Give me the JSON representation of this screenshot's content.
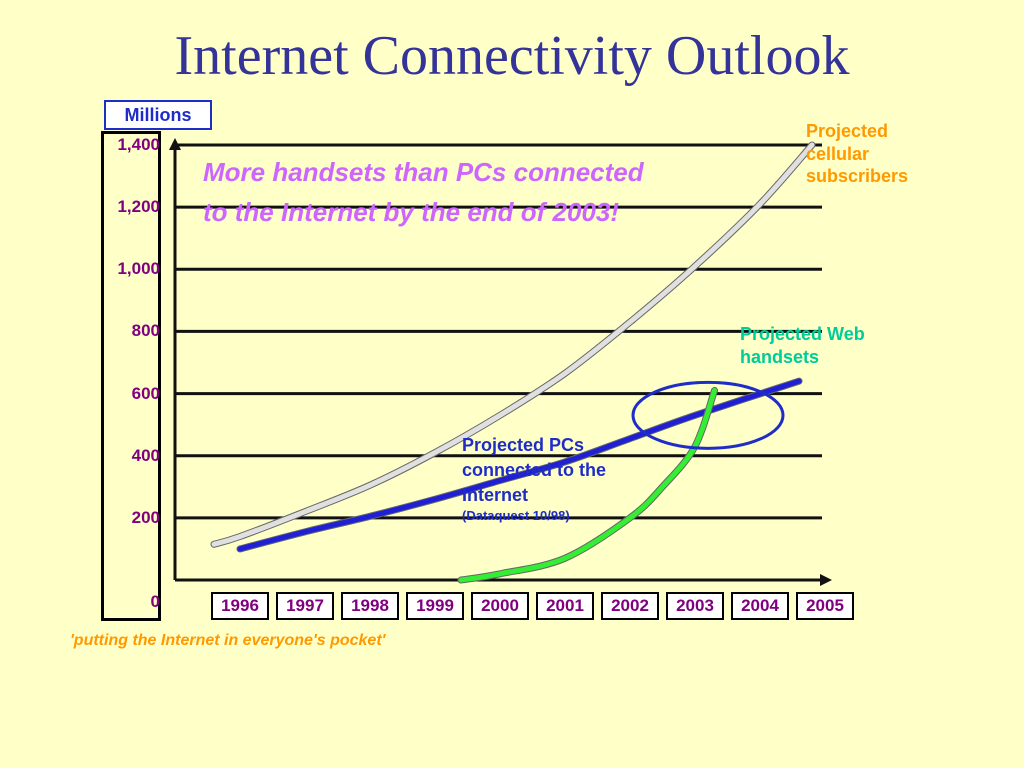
{
  "slide": {
    "title": "Internet Connectivity Outlook",
    "tagline": "'putting the Internet in everyone's pocket'"
  },
  "chart_data": {
    "type": "line",
    "ylabel": "Millions",
    "ylim": [
      0,
      1400
    ],
    "yticks": [
      "0",
      "200",
      "400",
      "600",
      "800",
      "1,000",
      "1,200",
      "1,400"
    ],
    "categories": [
      "1996",
      "1997",
      "1998",
      "1999",
      "2000",
      "2001",
      "2002",
      "2003",
      "2004",
      "2005"
    ],
    "grid": true,
    "callout": "More handsets than PCs connected to the Internet by the end of 2003!",
    "series": [
      {
        "name": "Projected cellular subscribers",
        "color": "#e0e0e0",
        "x": [
          1995.6,
          1996,
          1997,
          1998,
          1999,
          2000,
          2001,
          2002,
          2003,
          2004,
          2004.8
        ],
        "values": [
          115,
          140,
          220,
          305,
          410,
          530,
          665,
          830,
          1010,
          1210,
          1400
        ]
      },
      {
        "name": "Projected PCs connected to the Internet",
        "source": "(Dataquest 10/98)",
        "color": "#1f1fd6",
        "x": [
          1996,
          1997,
          1998,
          1999,
          2000,
          2001,
          2002,
          2003,
          2004.6
        ],
        "values": [
          100,
          155,
          205,
          260,
          320,
          380,
          455,
          530,
          640
        ]
      },
      {
        "name": "Projected Web handsets",
        "color": "#33ee33",
        "x": [
          1999.4,
          2000,
          2001,
          2002,
          2002.5,
          2003,
          2003.3
        ],
        "values": [
          0,
          20,
          70,
          200,
          300,
          430,
          610
        ]
      }
    ],
    "annotations": {
      "cellular_label": "Projected cellular subscribers",
      "web_label": "Projected Web handsets",
      "pc_label": "Projected PCs connected to the Internet",
      "pc_source": "(Dataquest 10/98)",
      "highlight": "ellipse around 2003 crossover"
    }
  }
}
